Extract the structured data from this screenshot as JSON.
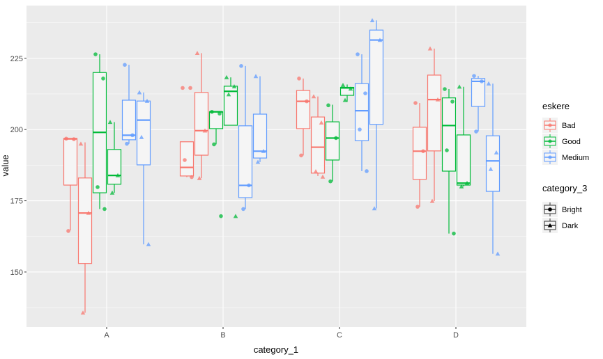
{
  "chart_data": {
    "type": "boxplot",
    "xlabel": "category_1",
    "ylabel": "value",
    "ylim": [
      130.7,
      243.5
    ],
    "yticks": [
      150,
      175,
      200,
      225
    ],
    "categories": [
      "A",
      "B",
      "C",
      "D"
    ],
    "grid": true,
    "legend_placement": "right",
    "legends": [
      {
        "title": "eskere",
        "entries": [
          {
            "label": "Bad",
            "color": "#F8766D"
          },
          {
            "label": "Good",
            "color": "#00BA38"
          },
          {
            "label": "Medium",
            "color": "#619CFF"
          }
        ]
      },
      {
        "title": "category_3",
        "entries": [
          {
            "label": "Bright",
            "shape": "circle"
          },
          {
            "label": "Dark",
            "shape": "triangle"
          }
        ]
      }
    ],
    "groups": [
      {
        "eskere": "Bad",
        "category_3": "Bright"
      },
      {
        "eskere": "Bad",
        "category_3": "Dark"
      },
      {
        "eskere": "Good",
        "category_3": "Bright"
      },
      {
        "eskere": "Good",
        "category_3": "Dark"
      },
      {
        "eskere": "Medium",
        "category_3": "Bright"
      },
      {
        "eskere": "Medium",
        "category_3": "Dark"
      }
    ],
    "boxes": {
      "A": [
        {
          "lower": 164.6,
          "q1": 180.5,
          "median": 196.7,
          "q3": 196.9,
          "upper": 196.9,
          "points": [
            196.8,
            196.6,
            164.4
          ]
        },
        {
          "lower": 135.7,
          "q1": 153.0,
          "median": 170.7,
          "q3": 183.0,
          "upper": 195.5,
          "points": [
            195.0,
            170.7,
            135.7
          ]
        },
        {
          "lower": 172.1,
          "q1": 177.8,
          "median": 199.0,
          "q3": 220.0,
          "upper": 226.4,
          "points": [
            226.4,
            217.9,
            179.8,
            172.1
          ]
        },
        {
          "lower": 177.8,
          "q1": 180.8,
          "median": 183.9,
          "q3": 193.0,
          "upper": 202.6,
          "points": [
            202.6,
            183.9,
            177.8
          ]
        },
        {
          "lower": 195.0,
          "q1": 196.4,
          "median": 198.0,
          "q3": 210.3,
          "upper": 222.7,
          "points": [
            222.7,
            198.0,
            195.0
          ]
        },
        {
          "lower": 159.7,
          "q1": 187.6,
          "median": 203.3,
          "q3": 210.0,
          "upper": 213.0,
          "points": [
            213.0,
            210.0,
            197.3,
            159.7
          ]
        }
      ],
      "B": [
        {
          "lower": 183.3,
          "q1": 183.7,
          "median": 186.7,
          "q3": 195.7,
          "upper": 195.7,
          "points": [
            214.6,
            214.6,
            189.3,
            183.3
          ]
        },
        {
          "lower": 182.9,
          "q1": 191.0,
          "median": 199.6,
          "q3": 213.0,
          "upper": 226.8,
          "points": [
            226.8,
            199.6,
            182.9
          ]
        },
        {
          "lower": 194.8,
          "q1": 200.3,
          "median": 206.2,
          "q3": 206.2,
          "upper": 206.2,
          "points": [
            206.2,
            205.6,
            194.8,
            169.6
          ]
        },
        {
          "lower": 201.5,
          "q1": 201.5,
          "median": 213.4,
          "q3": 215.2,
          "upper": 218.3,
          "points": [
            218.3,
            215.1,
            212.3,
            169.6
          ]
        },
        {
          "lower": 172.1,
          "q1": 176.1,
          "median": 180.4,
          "q3": 201.3,
          "upper": 222.3,
          "points": [
            222.3,
            180.4,
            172.1
          ]
        },
        {
          "lower": 188.6,
          "q1": 190.0,
          "median": 192.4,
          "q3": 205.4,
          "upper": 218.7,
          "points": [
            218.7,
            192.4,
            188.6
          ]
        }
      ],
      "C": [
        {
          "lower": 190.9,
          "q1": 200.3,
          "median": 209.9,
          "q3": 213.7,
          "upper": 217.9,
          "points": [
            217.9,
            209.9,
            190.9
          ]
        },
        {
          "lower": 183.7,
          "q1": 184.7,
          "median": 193.8,
          "q3": 204.4,
          "upper": 211.6,
          "points": [
            211.6,
            202.4,
            185.3,
            183.4
          ]
        },
        {
          "lower": 181.8,
          "q1": 189.3,
          "median": 197.0,
          "q3": 202.7,
          "upper": 208.7,
          "points": [
            208.5,
            197.0,
            181.8
          ]
        },
        {
          "lower": 209.7,
          "q1": 212.0,
          "median": 214.6,
          "q3": 214.8,
          "upper": 215.8,
          "points": [
            215.6,
            214.3,
            210.3
          ]
        },
        {
          "lower": 185.4,
          "q1": 196.1,
          "median": 206.6,
          "q3": 216.1,
          "upper": 226.4,
          "points": [
            226.4,
            212.7,
            200.0,
            185.4
          ]
        },
        {
          "lower": 172.3,
          "q1": 201.8,
          "median": 231.4,
          "q3": 234.9,
          "upper": 238.3,
          "points": [
            238.3,
            231.4,
            172.3
          ]
        }
      ],
      "D": [
        {
          "lower": 172.9,
          "q1": 182.5,
          "median": 192.4,
          "q3": 200.8,
          "upper": 209.3,
          "points": [
            209.3,
            192.4,
            172.9
          ]
        },
        {
          "lower": 174.9,
          "q1": 192.5,
          "median": 210.5,
          "q3": 219.1,
          "upper": 228.4,
          "points": [
            228.4,
            210.5,
            174.9
          ]
        },
        {
          "lower": 163.5,
          "q1": 185.4,
          "median": 201.4,
          "q3": 211.1,
          "upper": 214.2,
          "points": [
            214.2,
            209.8,
            192.7,
            163.5
          ]
        },
        {
          "lower": 180.0,
          "q1": 180.5,
          "median": 181.2,
          "q3": 198.1,
          "upper": 215.0,
          "points": [
            215.0,
            181.2,
            180.0
          ]
        },
        {
          "lower": 199.3,
          "q1": 208.1,
          "median": 216.9,
          "q3": 217.9,
          "upper": 218.8,
          "points": [
            218.8,
            216.9,
            199.3
          ]
        },
        {
          "lower": 156.4,
          "q1": 178.3,
          "median": 189.0,
          "q3": 197.8,
          "upper": 216.1,
          "points": [
            216.1,
            191.9,
            186.1,
            156.4
          ]
        }
      ]
    }
  }
}
